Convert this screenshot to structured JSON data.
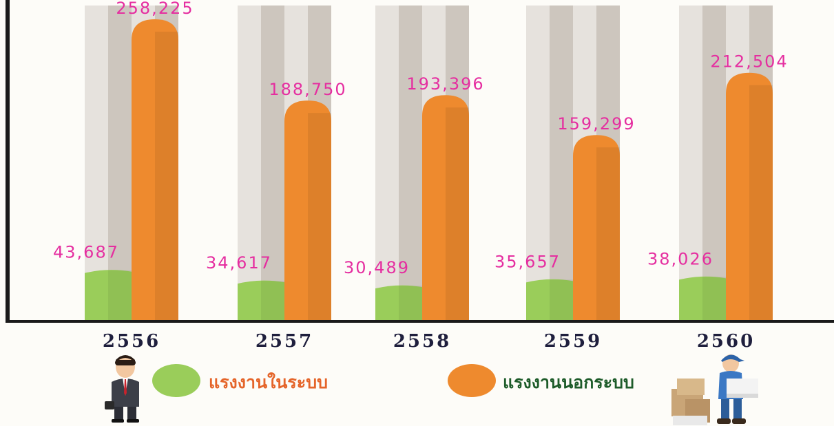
{
  "chart_data": {
    "type": "bar",
    "categories": [
      "2556",
      "2557",
      "2558",
      "2559",
      "2560"
    ],
    "series": [
      {
        "name": "แรงงานในระบบ",
        "values": [
          43687,
          34617,
          30489,
          35657,
          38026
        ],
        "color": "#9acd5a"
      },
      {
        "name": "แรงงานนอกระบบ",
        "values": [
          258225,
          188750,
          193396,
          159299,
          212504
        ],
        "color": "#ee8a2e"
      }
    ],
    "value_labels": {
      "inner": [
        "43,687",
        "34,617",
        "30,489",
        "35,657",
        "38,026"
      ],
      "outer": [
        "258,225",
        "188,750",
        "193,396",
        "159,299",
        "212,504"
      ]
    },
    "title": "",
    "xlabel": "",
    "ylabel": "",
    "ylim": [
      0,
      270000
    ],
    "grid": false,
    "legend_position": "bottom"
  },
  "colors": {
    "label_pink": "#e52ea0",
    "axis": "#1a1a1a",
    "category_label": "#1f1f3d",
    "legend_inner_text": "#e5652a",
    "legend_outer_text": "#1e5c2a",
    "column_light": "#e6e2dd",
    "column_dark": "#cdc6be"
  },
  "legend": {
    "inner_label": "แรงงานในระบบ",
    "outer_label": "แรงงานนอกระบบ",
    "inner_icon": "office-worker-icon",
    "outer_icon": "delivery-worker-icon"
  }
}
